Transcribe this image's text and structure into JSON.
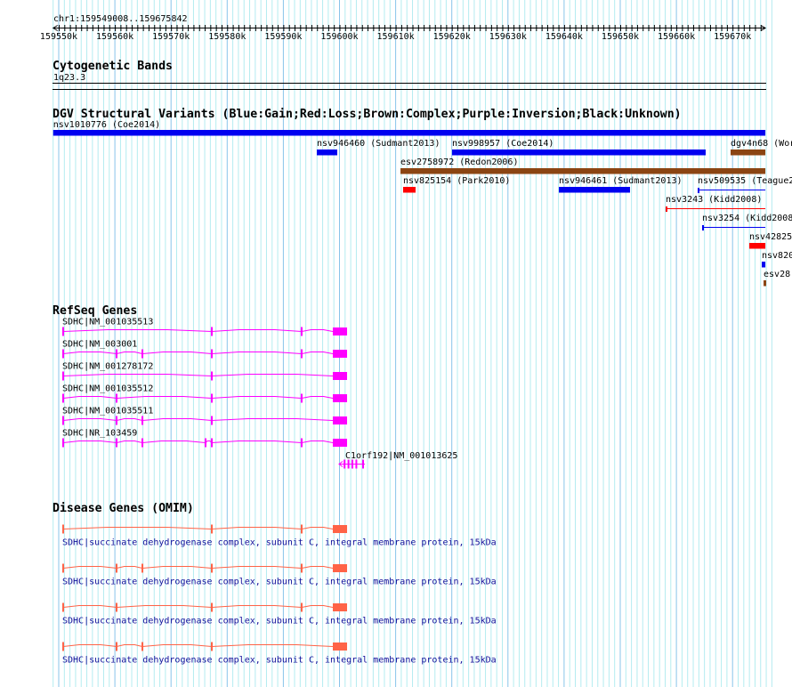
{
  "ruler": {
    "region_label": "chr1:159549008..159675842",
    "start_kb": 159549.008,
    "end_kb": 159675.842,
    "tick_labels": [
      "159550k",
      "159560k",
      "159570k",
      "159580k",
      "159590k",
      "159600k",
      "159610k",
      "159620k",
      "159630k",
      "159640k",
      "159650k",
      "159660k",
      "159670k"
    ]
  },
  "grid": {
    "minor_color": "#b4ecf0",
    "major_color": "#88c4ea"
  },
  "cytoband": {
    "title": "Cytogenetic Bands",
    "band": "1q23.3"
  },
  "dgv": {
    "title": "DGV Structural Variants (Blue:Gain;Red:Loss;Brown:Complex;Purple:Inversion;Black:Unknown)",
    "colors": {
      "gain": "#0000f0",
      "loss": "#ff0000",
      "complex": "#8b4513"
    },
    "features": [
      {
        "label": "nsv1010776 (Coe2014)",
        "row": 0,
        "start_kb": 159549.008,
        "end_kb": 159675.842,
        "type": "gain",
        "style": "thick"
      },
      {
        "label": "nsv946460 (Sudmant2013)",
        "row": 1,
        "start_kb": 159595.96,
        "end_kb": 159599.6,
        "type": "gain",
        "style": "thick"
      },
      {
        "label": "nsv998957 (Coe2014)",
        "row": 1,
        "start_kb": 159620.05,
        "end_kb": 159665.21,
        "type": "gain",
        "style": "thick"
      },
      {
        "label": "dgv4n68 (Wor",
        "row": 1,
        "start_kb": 159669.65,
        "end_kb": 159675.842,
        "type": "complex",
        "style": "thick"
      },
      {
        "label": "esv2758972 (Redon2006)",
        "row": 2,
        "start_kb": 159610.86,
        "end_kb": 159675.842,
        "type": "complex",
        "style": "thick"
      },
      {
        "label": "nsv825154 (Park2010)",
        "row": 3,
        "start_kb": 159611.33,
        "end_kb": 159613.55,
        "type": "loss",
        "style": "thick"
      },
      {
        "label": "nsv946461 (Sudmant2013)",
        "row": 3,
        "start_kb": 159639.07,
        "end_kb": 159651.74,
        "type": "gain",
        "style": "thick"
      },
      {
        "label": "nsv509535 (Teague2",
        "row": 3,
        "start_kb": 159663.79,
        "end_kb": 159675.842,
        "type": "gain",
        "style": "thin"
      },
      {
        "label": "nsv3243 (Kidd2008)",
        "row": 4,
        "start_kb": 159658.08,
        "end_kb": 159675.842,
        "type": "loss",
        "style": "thin"
      },
      {
        "label": "nsv3254 (Kidd2008",
        "row": 5,
        "start_kb": 159664.58,
        "end_kb": 159675.842,
        "type": "gain",
        "style": "thin"
      },
      {
        "label": "nsv42825",
        "row": 6,
        "start_kb": 159672.98,
        "end_kb": 159675.842,
        "type": "loss",
        "style": "thick"
      },
      {
        "label": "nsv820",
        "row": 7,
        "start_kb": 159675.2,
        "end_kb": 159675.842,
        "type": "gain",
        "style": "thick"
      },
      {
        "label": "esv28",
        "row": 8,
        "start_kb": 159675.52,
        "end_kb": 159675.842,
        "type": "complex",
        "style": "thick"
      }
    ]
  },
  "refseq": {
    "title": "RefSeq Genes",
    "color": "#ff00ff",
    "transcripts": [
      {
        "label": "SDHC|NM_001035513",
        "exons_kb": [
          159550.79,
          159577.26,
          159593.26
        ],
        "last_exon_kb": [
          159598.81,
          159601.35
        ]
      },
      {
        "label": "SDHC|NM_003001",
        "exons_kb": [
          159550.79,
          159560.3,
          159564.9,
          159577.26,
          159593.26
        ],
        "last_exon_kb": [
          159598.81,
          159601.35
        ]
      },
      {
        "label": "SDHC|NM_001278172",
        "exons_kb": [
          159550.79,
          159577.26
        ],
        "last_exon_kb": [
          159598.81,
          159601.35
        ]
      },
      {
        "label": "SDHC|NM_001035512",
        "exons_kb": [
          159550.79,
          159560.3,
          159577.26,
          159593.26
        ],
        "last_exon_kb": [
          159598.81,
          159601.35
        ]
      },
      {
        "label": "SDHC|NM_001035511",
        "exons_kb": [
          159550.79,
          159560.3,
          159564.9,
          159577.26
        ],
        "last_exon_kb": [
          159598.81,
          159601.35
        ]
      },
      {
        "label": "SDHC|NR_103459",
        "exons_kb": [
          159550.79,
          159560.3,
          159564.9,
          159576.15,
          159577.26,
          159593.26
        ],
        "last_exon_kb": [
          159598.81,
          159601.35
        ]
      }
    ],
    "c1orf192": {
      "label": "C1orf192|NM_001013625",
      "start_kb": 159599.92,
      "end_kb": 159604.52,
      "exons_kb": [
        159600.9,
        159601.6,
        159602.3,
        159603.0,
        159604.2
      ]
    }
  },
  "omim": {
    "title": "Disease Genes (OMIM)",
    "color": "#ff6347",
    "entries": [
      {
        "label": "SDHC|succinate dehydrogenase complex, subunit C, integral membrane protein, 15kDa",
        "exons_kb": [
          159550.79,
          159577.26,
          159593.26
        ],
        "last_exon_kb": [
          159598.81,
          159601.35
        ]
      },
      {
        "label": "SDHC|succinate dehydrogenase complex, subunit C, integral membrane protein, 15kDa",
        "exons_kb": [
          159550.79,
          159560.3,
          159564.9,
          159577.26,
          159593.26
        ],
        "last_exon_kb": [
          159598.81,
          159601.35
        ]
      },
      {
        "label": "SDHC|succinate dehydrogenase complex, subunit C, integral membrane protein, 15kDa",
        "exons_kb": [
          159550.79,
          159560.3,
          159577.26,
          159593.26
        ],
        "last_exon_kb": [
          159598.81,
          159601.35
        ]
      },
      {
        "label": "SDHC|succinate dehydrogenase complex, subunit C, integral membrane protein, 15kDa",
        "exons_kb": [
          159550.79,
          159560.3,
          159564.9,
          159577.26
        ],
        "last_exon_kb": [
          159598.81,
          159601.35
        ]
      }
    ]
  }
}
